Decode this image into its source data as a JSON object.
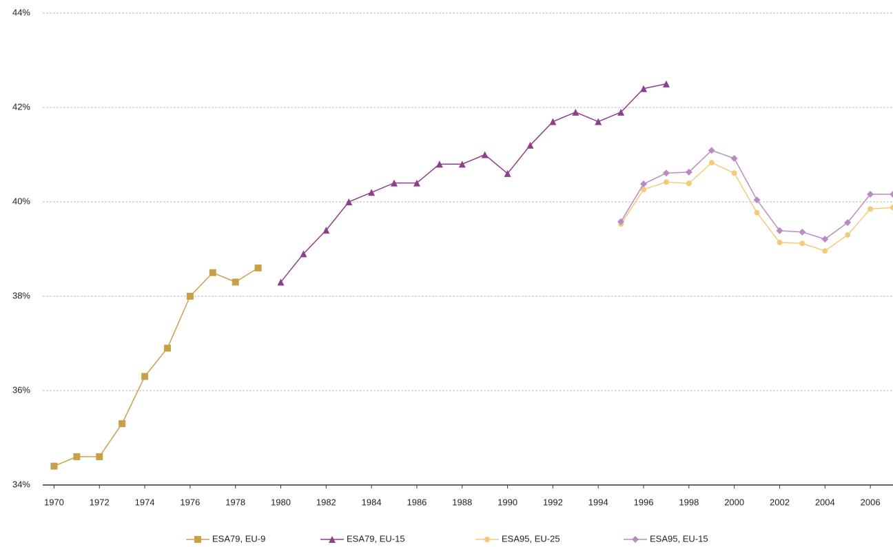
{
  "chart_data": {
    "type": "line",
    "x": [
      1970,
      1971,
      1972,
      1973,
      1974,
      1975,
      1976,
      1977,
      1978,
      1979,
      1980,
      1981,
      1982,
      1983,
      1984,
      1985,
      1986,
      1987,
      1988,
      1989,
      1990,
      1991,
      1992,
      1993,
      1994,
      1995,
      1996,
      1997,
      1998,
      1999,
      2000,
      2001,
      2002,
      2003,
      2004,
      2005,
      2006,
      2007
    ],
    "series": [
      {
        "name": "ESA79, EU-9",
        "color": "#c9a04a",
        "marker": "square",
        "values": [
          34.4,
          34.6,
          34.6,
          35.3,
          36.3,
          36.9,
          38.0,
          38.5,
          38.3,
          38.6,
          null,
          null,
          null,
          null,
          null,
          null,
          null,
          null,
          null,
          null,
          null,
          null,
          null,
          null,
          null,
          null,
          null,
          null,
          null,
          null,
          null,
          null,
          null,
          null,
          null,
          null,
          null,
          null
        ]
      },
      {
        "name": "ESA79, EU-15",
        "color": "#8e3f8c",
        "marker": "triangle",
        "values": [
          null,
          null,
          null,
          null,
          null,
          null,
          null,
          null,
          null,
          null,
          38.3,
          38.9,
          39.4,
          40.0,
          40.2,
          40.4,
          40.4,
          40.8,
          40.8,
          41.0,
          40.6,
          41.2,
          41.7,
          41.9,
          41.7,
          41.9,
          42.4,
          42.5,
          null,
          null,
          null,
          null,
          null,
          null,
          null,
          null,
          null,
          null
        ]
      },
      {
        "name": "ESA95, EU-25",
        "color": "#f5c97a",
        "marker": "circle",
        "values": [
          null,
          null,
          null,
          null,
          null,
          null,
          null,
          null,
          null,
          null,
          null,
          null,
          null,
          null,
          null,
          null,
          null,
          null,
          null,
          null,
          null,
          null,
          null,
          null,
          null,
          39.53,
          40.26,
          40.42,
          40.39,
          40.83,
          40.61,
          39.77,
          39.14,
          39.12,
          38.96,
          39.3,
          39.85,
          39.88
        ]
      },
      {
        "name": "ESA95, EU-15",
        "color": "#b98bc0",
        "marker": "diamond",
        "values": [
          null,
          null,
          null,
          null,
          null,
          null,
          null,
          null,
          null,
          null,
          null,
          null,
          null,
          null,
          null,
          null,
          null,
          null,
          null,
          null,
          null,
          null,
          null,
          null,
          null,
          39.58,
          40.38,
          40.61,
          40.63,
          41.09,
          40.92,
          40.04,
          39.39,
          39.36,
          39.21,
          39.56,
          40.16,
          40.16
        ]
      }
    ],
    "xlim": [
      1969.5,
      2007
    ],
    "xticks": [
      1970,
      1972,
      1974,
      1976,
      1978,
      1980,
      1982,
      1984,
      1986,
      1988,
      1990,
      1992,
      1994,
      1996,
      1998,
      2000,
      2002,
      2004,
      2006
    ],
    "ylim": [
      34,
      44
    ],
    "yticks": [
      {
        "value": 34,
        "label": "34%"
      },
      {
        "value": 36,
        "label": "36%"
      },
      {
        "value": 38,
        "label": "38%"
      },
      {
        "value": 40,
        "label": "40%"
      },
      {
        "value": 42,
        "label": "42%"
      },
      {
        "value": 44,
        "label": "44%"
      }
    ],
    "grid": true,
    "legend": "bottom"
  }
}
